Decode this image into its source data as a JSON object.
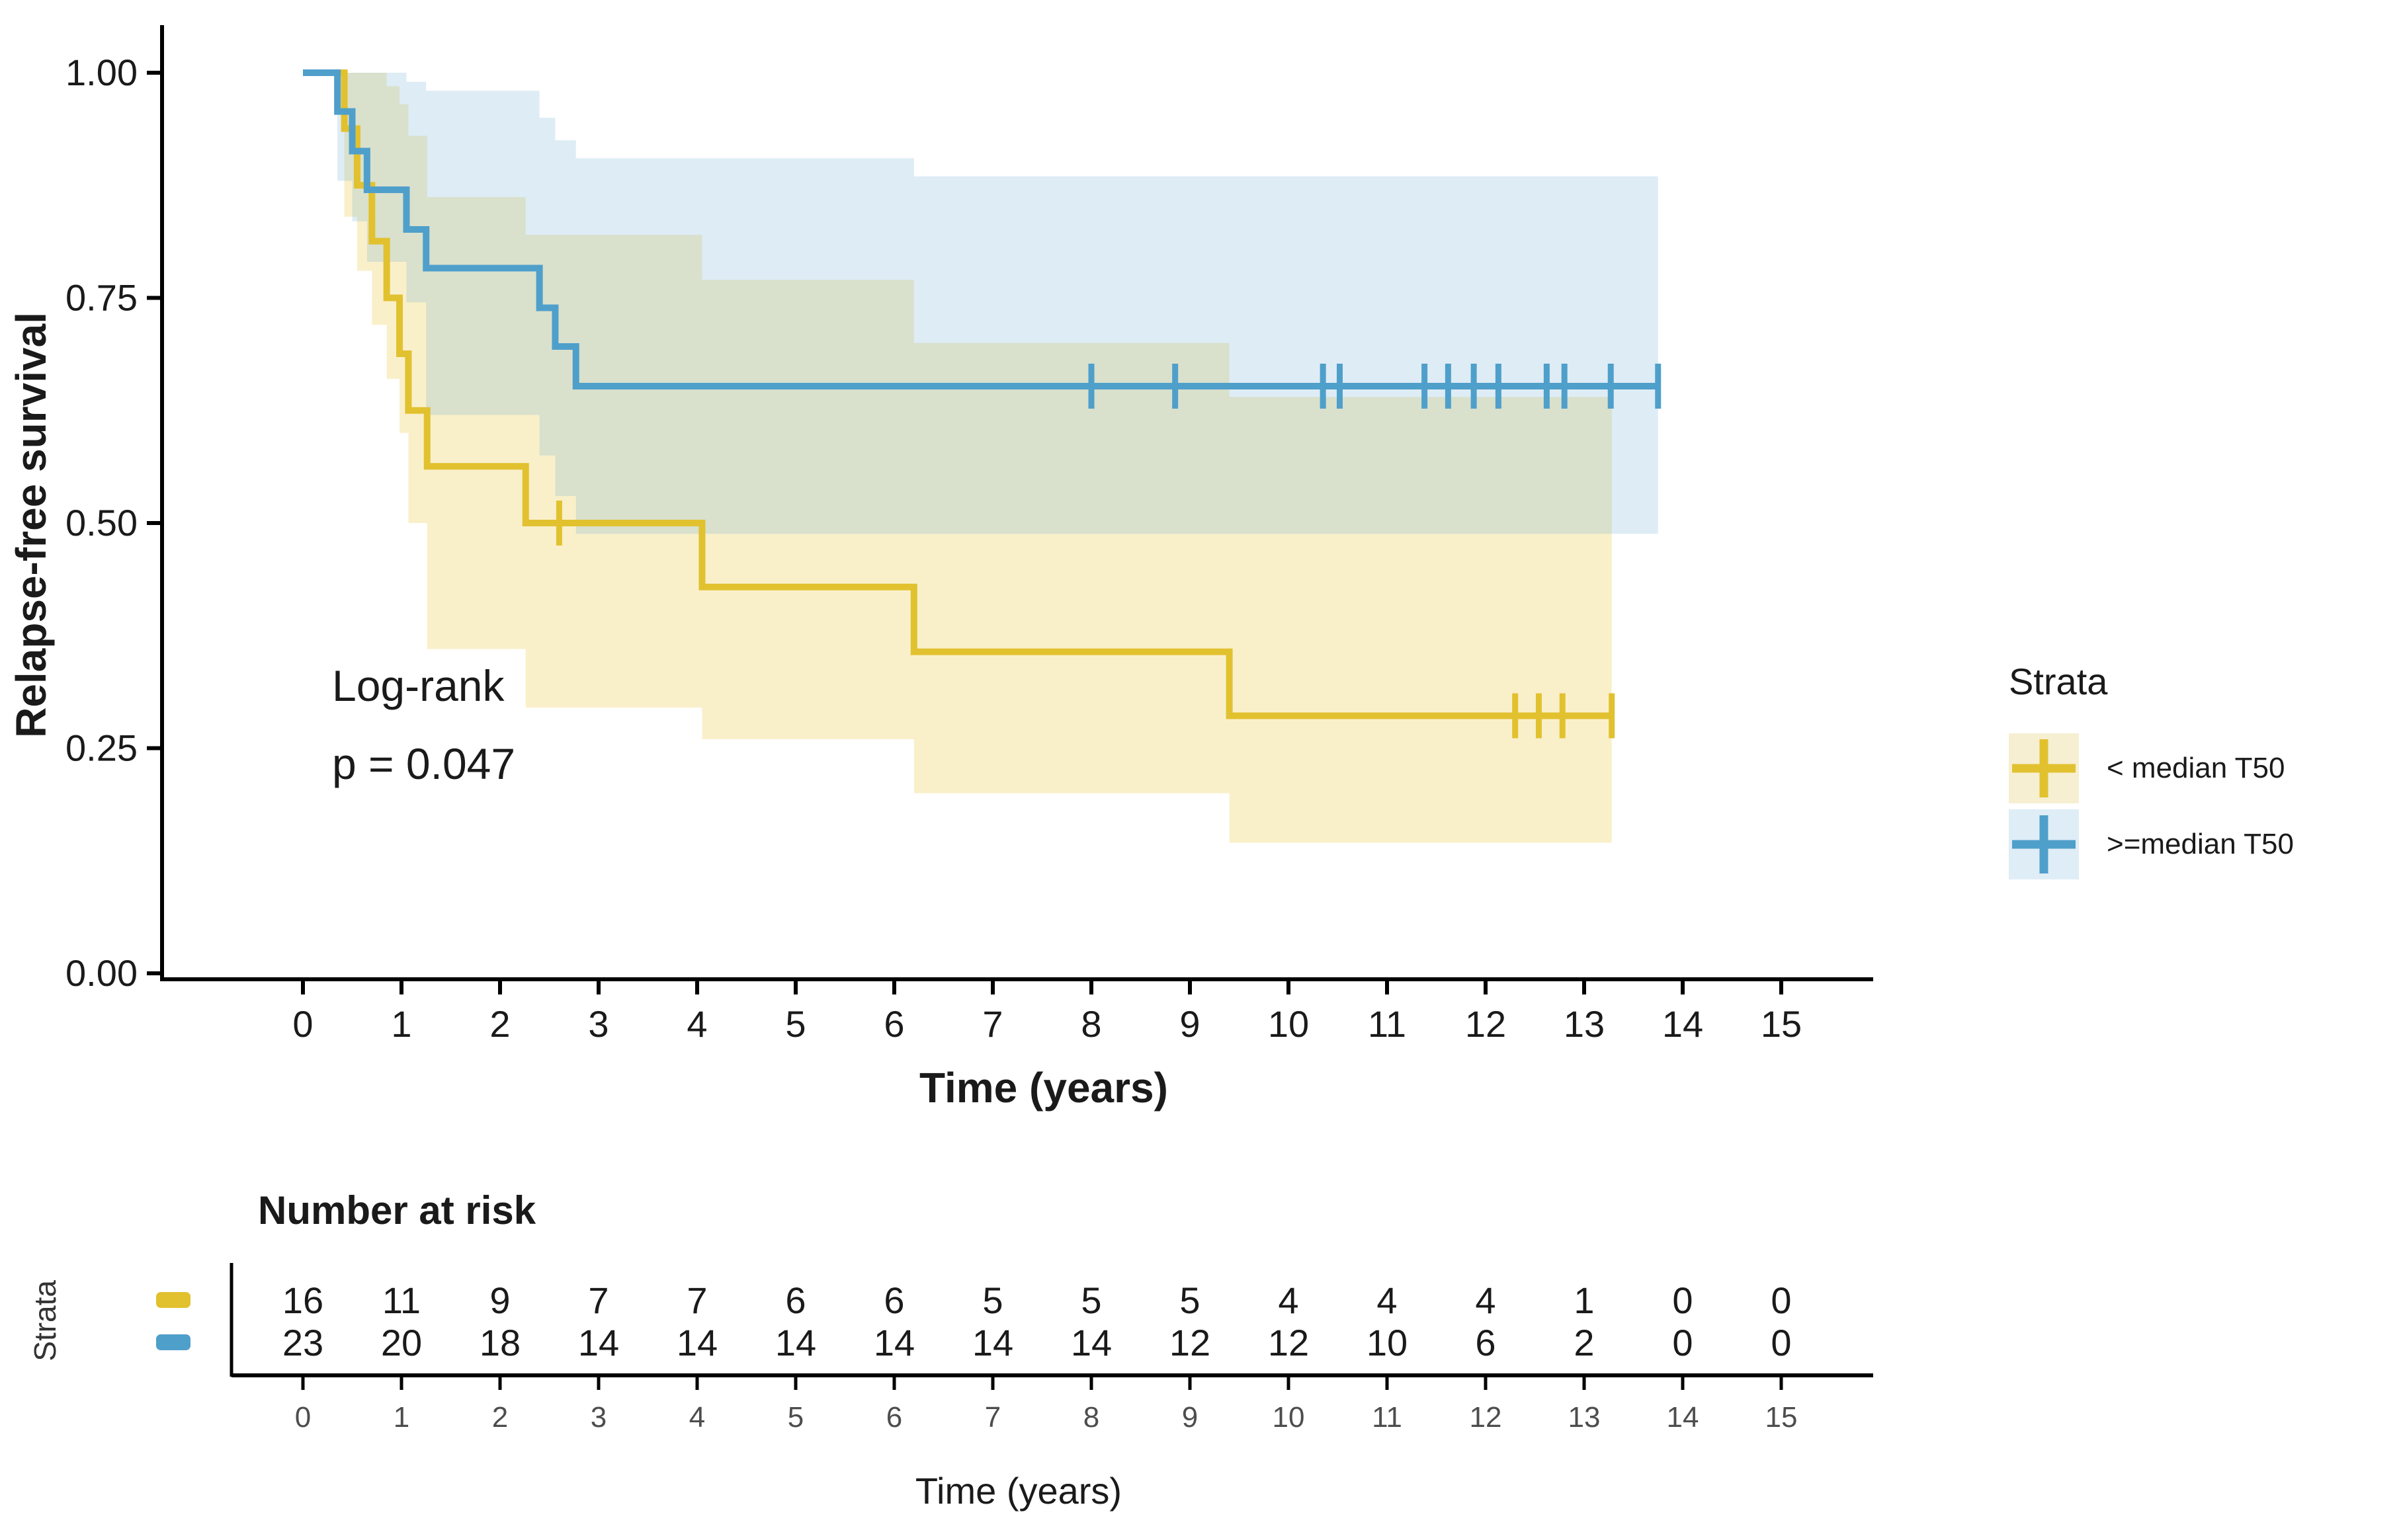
{
  "figure": {
    "background": "#ffffff"
  },
  "annotation": {
    "lines": [
      "Log-rank",
      "p = 0.047"
    ]
  },
  "legend": {
    "title": "Strata",
    "items": [
      {
        "label": "< median T50",
        "color": "#E2C12F",
        "bg": "#F7EFD2",
        "symbol": "plus-cross"
      },
      {
        "label": ">=median T50",
        "color": "#4F9FCB",
        "bg": "#DFEDF6",
        "symbol": "plus-cross"
      }
    ]
  },
  "chart_data": {
    "type": "line",
    "subtype": "kaplan-meier-step",
    "title": "",
    "xlabel": "Time (years)",
    "ylabel": "Relapse-free survival",
    "xlim": [
      0,
      15.9
    ],
    "ylim": [
      0,
      1
    ],
    "grid": false,
    "legend_position": "right",
    "x_ticks": [
      0,
      1,
      2,
      3,
      4,
      5,
      6,
      7,
      8,
      9,
      10,
      11,
      12,
      13,
      14,
      15
    ],
    "y_ticks": [
      {
        "value": 0.0,
        "label": "0.00"
      },
      {
        "value": 0.25,
        "label": "0.25"
      },
      {
        "value": 0.5,
        "label": "0.50"
      },
      {
        "value": 0.75,
        "label": "0.75"
      },
      {
        "value": 1.0,
        "label": "1.00"
      }
    ],
    "pvalue_text": [
      "Log-rank",
      "p = 0.047"
    ],
    "series": [
      {
        "name": "< median T50",
        "color": "#E2C12F",
        "ci_fill": "#E8C63A",
        "ci_opacity": 0.27,
        "steps": [
          [
            0,
            1
          ],
          [
            0.42,
            0.938
          ],
          [
            0.55,
            0.875
          ],
          [
            0.7,
            0.813
          ],
          [
            0.85,
            0.75
          ],
          [
            0.98,
            0.688
          ],
          [
            1.07,
            0.625
          ],
          [
            1.26,
            0.563
          ],
          [
            2.26,
            0.5
          ],
          [
            4.05,
            0.429
          ],
          [
            6.2,
            0.357
          ],
          [
            9.4,
            0.286
          ]
        ],
        "end_time": 13.28,
        "censors": [
          [
            2.6,
            0.5
          ],
          [
            12.3,
            0.286
          ],
          [
            12.54,
            0.286
          ],
          [
            12.78,
            0.286
          ],
          [
            13.28,
            0.286
          ]
        ],
        "ci": [
          [
            0.42,
            0.84,
            1.0
          ],
          [
            0.55,
            0.78,
            1.0
          ],
          [
            0.7,
            0.72,
            1.0
          ],
          [
            0.85,
            0.66,
            0.985
          ],
          [
            0.98,
            0.6,
            0.965
          ],
          [
            1.07,
            0.5,
            0.93
          ],
          [
            1.26,
            0.36,
            0.862
          ],
          [
            2.26,
            0.295,
            0.82
          ],
          [
            4.05,
            0.26,
            0.77
          ],
          [
            6.2,
            0.2,
            0.7
          ],
          [
            9.4,
            0.145,
            0.64
          ]
        ]
      },
      {
        "name": ">=median T50",
        "color": "#4F9FCB",
        "ci_fill": "#74AFD4",
        "ci_opacity": 0.24,
        "steps": [
          [
            0,
            1
          ],
          [
            0.35,
            0.957
          ],
          [
            0.5,
            0.913
          ],
          [
            0.65,
            0.87
          ],
          [
            1.05,
            0.826
          ],
          [
            1.25,
            0.783
          ],
          [
            2.4,
            0.739
          ],
          [
            2.56,
            0.696
          ],
          [
            2.77,
            0.652
          ]
        ],
        "end_time": 13.75,
        "censors": [
          [
            8.0,
            0.652
          ],
          [
            8.85,
            0.652
          ],
          [
            10.35,
            0.652
          ],
          [
            10.52,
            0.652
          ],
          [
            11.38,
            0.652
          ],
          [
            11.62,
            0.652
          ],
          [
            11.88,
            0.652
          ],
          [
            12.13,
            0.652
          ],
          [
            12.62,
            0.652
          ],
          [
            12.8,
            0.652
          ],
          [
            13.27,
            0.652
          ],
          [
            13.75,
            0.652
          ]
        ],
        "ci": [
          [
            0.35,
            0.88,
            1.0
          ],
          [
            0.5,
            0.835,
            1.0
          ],
          [
            0.65,
            0.79,
            1.0
          ],
          [
            1.05,
            0.745,
            0.99
          ],
          [
            1.25,
            0.62,
            0.98
          ],
          [
            2.4,
            0.575,
            0.95
          ],
          [
            2.56,
            0.53,
            0.925
          ],
          [
            2.77,
            0.488,
            0.905
          ],
          [
            6.2,
            0.488,
            0.885
          ]
        ]
      }
    ],
    "risk_table": {
      "title": "Number at risk",
      "strata_axis_label": "Strata",
      "xlabel": "Time (years)",
      "times": [
        0,
        1,
        2,
        3,
        4,
        5,
        6,
        7,
        8,
        9,
        10,
        11,
        12,
        13,
        14,
        15
      ],
      "rows": [
        {
          "name": "< median T50",
          "counts": [
            16,
            11,
            9,
            7,
            7,
            6,
            6,
            5,
            5,
            5,
            4,
            4,
            4,
            1,
            0,
            0
          ]
        },
        {
          "name": ">=median T50",
          "counts": [
            23,
            20,
            18,
            14,
            14,
            14,
            14,
            14,
            14,
            12,
            12,
            10,
            6,
            2,
            0,
            0
          ]
        }
      ]
    }
  }
}
